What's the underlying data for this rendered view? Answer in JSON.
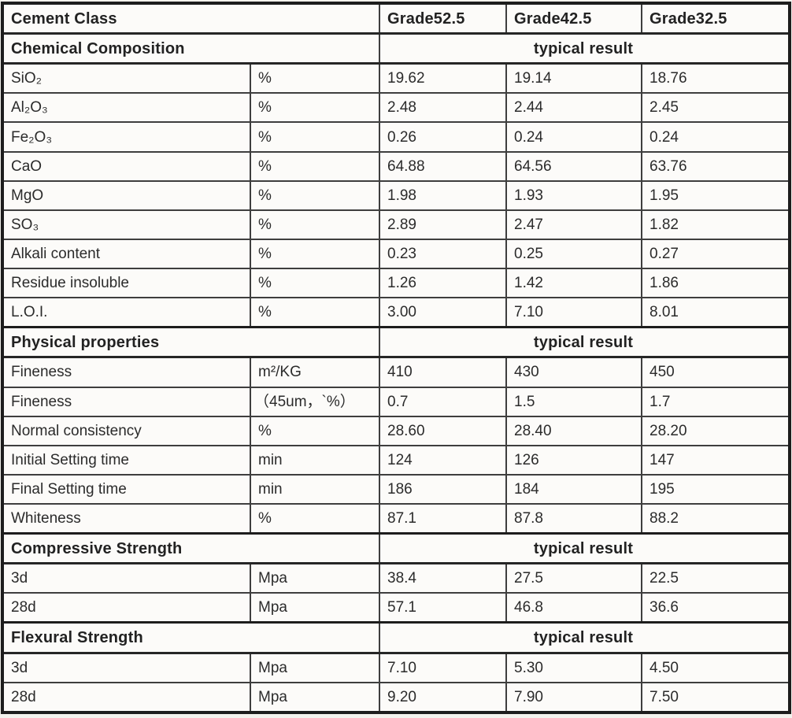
{
  "table": {
    "header": {
      "title": "Cement Class",
      "grades": [
        "Grade52.5",
        "Grade42.5",
        "Grade32.5"
      ]
    },
    "sections": [
      {
        "title": "Chemical Composition",
        "result_label": "typical result",
        "rows": [
          {
            "name": "SiO₂",
            "unit": "%",
            "values": [
              "19.62",
              "19.14",
              "18.76"
            ]
          },
          {
            "name": "Al₂O₃",
            "unit": "%",
            "values": [
              "2.48",
              "2.44",
              "2.45"
            ]
          },
          {
            "name": "Fe₂O₃",
            "unit": "%",
            "values": [
              "0.26",
              "0.24",
              "0.24"
            ]
          },
          {
            "name": "CaO",
            "unit": "%",
            "values": [
              "64.88",
              "64.56",
              "63.76"
            ]
          },
          {
            "name": "MgO",
            "unit": "%",
            "values": [
              "1.98",
              "1.93",
              "1.95"
            ]
          },
          {
            "name": "SO₃",
            "unit": "%",
            "values": [
              "2.89",
              "2.47",
              "1.82"
            ]
          },
          {
            "name": "Alkali content",
            "unit": "%",
            "values": [
              "0.23",
              "0.25",
              "0.27"
            ]
          },
          {
            "name": "Residue insoluble",
            "unit": "%",
            "values": [
              "1.26",
              "1.42",
              "1.86"
            ]
          },
          {
            "name": "L.O.I.",
            "unit": "%",
            "values": [
              "3.00",
              "7.10",
              "8.01"
            ]
          }
        ]
      },
      {
        "title": "Physical properties",
        "result_label": "typical result",
        "rows": [
          {
            "name": "Fineness",
            "unit": "m²/KG",
            "values": [
              "410",
              "430",
              "450"
            ]
          },
          {
            "name": "Fineness",
            "unit": "（45um，`%）",
            "values": [
              "0.7",
              "1.5",
              "1.7"
            ]
          },
          {
            "name": "Normal consistency",
            "unit": "%",
            "values": [
              "28.60",
              "28.40",
              "28.20"
            ]
          },
          {
            "name": "Initial Setting time",
            "unit": "min",
            "values": [
              "124",
              "126",
              "147"
            ]
          },
          {
            "name": "Final Setting time",
            "unit": "min",
            "values": [
              "186",
              "184",
              "195"
            ]
          },
          {
            "name": "Whiteness",
            "unit": "%",
            "values": [
              "87.1",
              "87.8",
              "88.2"
            ]
          }
        ]
      },
      {
        "title": "Compressive Strength",
        "result_label": "typical result",
        "rows": [
          {
            "name": "3d",
            "unit": "Mpa",
            "values": [
              "38.4",
              "27.5",
              "22.5"
            ]
          },
          {
            "name": "28d",
            "unit": "Mpa",
            "values": [
              "57.1",
              "46.8",
              "36.6"
            ]
          }
        ]
      },
      {
        "title": "Flexural Strength",
        "result_label": "typical result",
        "rows": [
          {
            "name": "3d",
            "unit": "Mpa",
            "values": [
              "7.10",
              "5.30",
              "4.50"
            ]
          },
          {
            "name": "28d",
            "unit": "Mpa",
            "values": [
              "9.20",
              "7.90",
              "7.50"
            ]
          }
        ]
      }
    ]
  },
  "colors": {
    "paper": "#f3f2ed",
    "cell_background": "#fcfbf9",
    "border_dark": "#1d1d1d",
    "border_inner": "#3e3e3e",
    "text": "#2b2b2b"
  }
}
